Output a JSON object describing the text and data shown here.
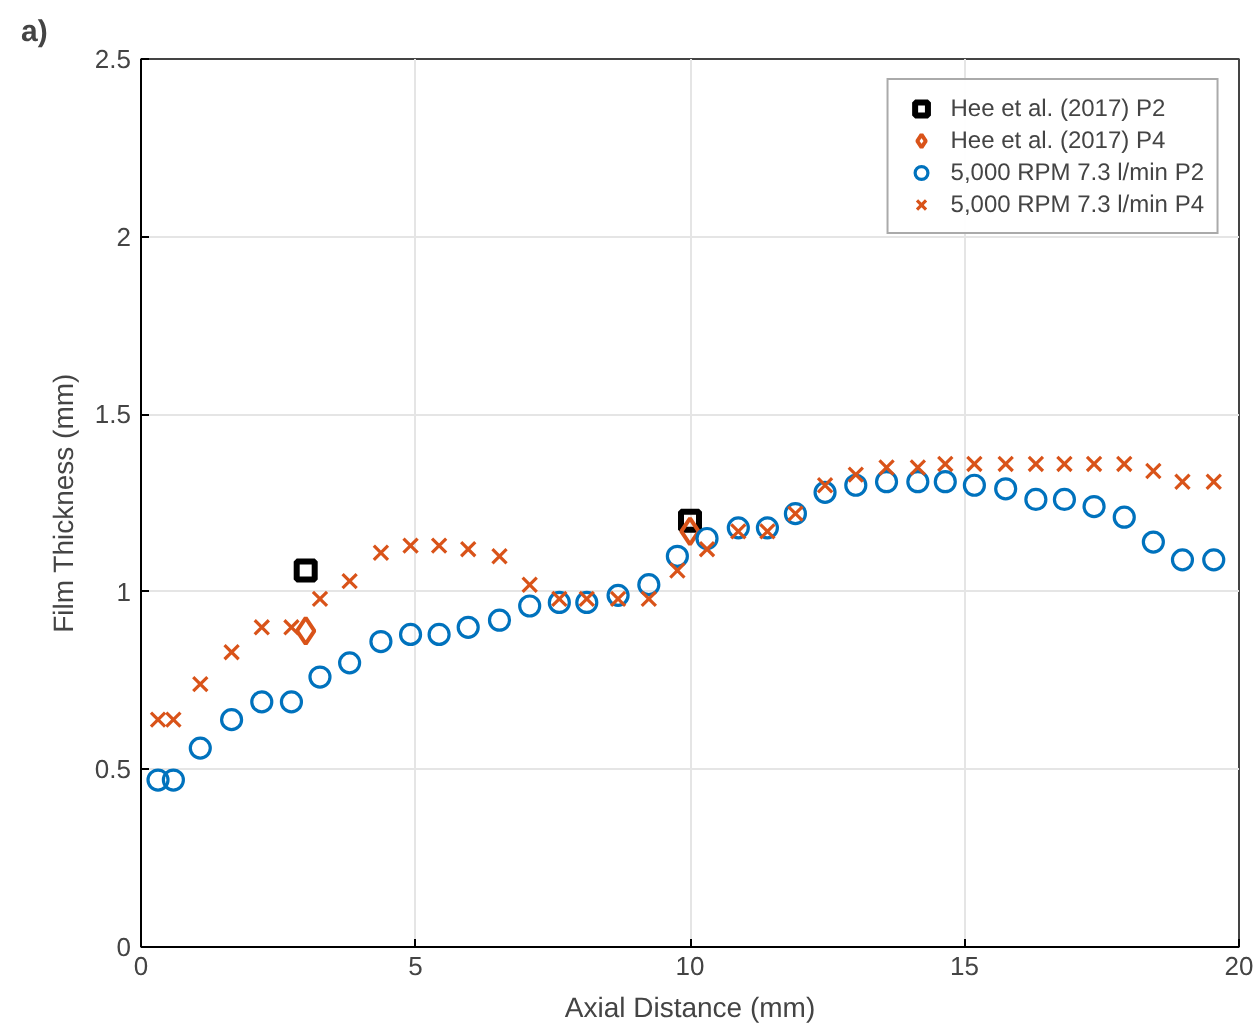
{
  "chart_data": {
    "type": "scatter",
    "title": "a)",
    "xlabel": "Axial Distance (mm)",
    "ylabel": "Film Thickness (mm)",
    "xlim": [
      0,
      20
    ],
    "ylim": [
      0,
      2.5
    ],
    "xticks": [
      0,
      5,
      10,
      15,
      20
    ],
    "yticks": [
      0,
      0.5,
      1,
      1.5,
      2,
      2.5
    ],
    "grid": true,
    "legend": "top right",
    "series": [
      {
        "name": "Hee et al. (2017) P2",
        "color": "#000000",
        "marker": "square",
        "x": [
          3,
          10
        ],
        "values": [
          1.06,
          1.2
        ]
      },
      {
        "name": "Hee et al. (2017) P4",
        "color": "#d95319",
        "marker": "diamond",
        "x": [
          3,
          10
        ],
        "values": [
          0.89,
          1.17
        ]
      },
      {
        "name": "5,000 RPM 7.3 l/min P2",
        "color": "#0072bd",
        "marker": "circle",
        "x": [
          0.31,
          0.59,
          1.08,
          1.65,
          2.2,
          2.74,
          3.26,
          3.8,
          4.37,
          4.91,
          5.43,
          5.96,
          6.53,
          7.08,
          7.62,
          8.12,
          8.69,
          9.25,
          9.77,
          10.31,
          10.88,
          11.41,
          11.92,
          12.46,
          13.02,
          13.58,
          14.15,
          14.65,
          15.18,
          15.75,
          16.3,
          16.82,
          17.36,
          17.91,
          18.44,
          18.97,
          19.54
        ],
        "values": [
          0.47,
          0.47,
          0.56,
          0.64,
          0.69,
          0.69,
          0.76,
          0.8,
          0.86,
          0.88,
          0.88,
          0.9,
          0.92,
          0.96,
          0.97,
          0.97,
          0.99,
          1.02,
          1.1,
          1.15,
          1.18,
          1.18,
          1.22,
          1.28,
          1.3,
          1.31,
          1.31,
          1.31,
          1.3,
          1.29,
          1.26,
          1.26,
          1.24,
          1.21,
          1.14,
          1.09,
          1.09
        ]
      },
      {
        "name": "5,000 RPM 7.3 l/min P4",
        "color": "#d95319",
        "marker": "cross",
        "x": [
          0.31,
          0.59,
          1.08,
          1.65,
          2.2,
          2.74,
          3.26,
          3.8,
          4.37,
          4.91,
          5.43,
          5.96,
          6.53,
          7.08,
          7.62,
          8.12,
          8.69,
          9.25,
          9.77,
          10.31,
          10.88,
          11.41,
          11.92,
          12.46,
          13.02,
          13.58,
          14.15,
          14.65,
          15.18,
          15.75,
          16.3,
          16.82,
          17.36,
          17.91,
          18.44,
          18.97,
          19.54
        ],
        "values": [
          0.64,
          0.64,
          0.74,
          0.83,
          0.9,
          0.9,
          0.98,
          1.03,
          1.11,
          1.13,
          1.13,
          1.12,
          1.1,
          1.02,
          0.98,
          0.98,
          0.98,
          0.98,
          1.06,
          1.12,
          1.17,
          1.17,
          1.22,
          1.3,
          1.33,
          1.35,
          1.35,
          1.36,
          1.36,
          1.36,
          1.36,
          1.36,
          1.36,
          1.36,
          1.34,
          1.31,
          1.31
        ]
      }
    ]
  }
}
